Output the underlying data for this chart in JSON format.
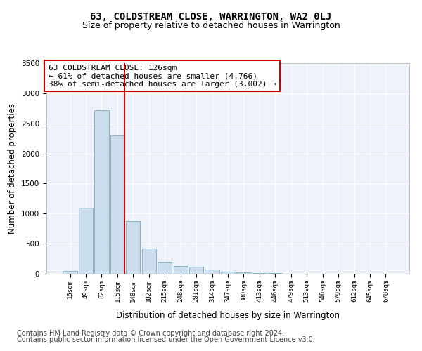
{
  "title": "63, COLDSTREAM CLOSE, WARRINGTON, WA2 0LJ",
  "subtitle": "Size of property relative to detached houses in Warrington",
  "xlabel": "Distribution of detached houses by size in Warrington",
  "ylabel": "Number of detached properties",
  "categories": [
    "16sqm",
    "49sqm",
    "82sqm",
    "115sqm",
    "148sqm",
    "182sqm",
    "215sqm",
    "248sqm",
    "281sqm",
    "314sqm",
    "347sqm",
    "380sqm",
    "413sqm",
    "446sqm",
    "479sqm",
    "513sqm",
    "546sqm",
    "579sqm",
    "612sqm",
    "645sqm",
    "678sqm"
  ],
  "values": [
    50,
    1100,
    2720,
    2300,
    870,
    415,
    200,
    130,
    115,
    70,
    40,
    22,
    12,
    7,
    4,
    3,
    2,
    1,
    1,
    0,
    0
  ],
  "bar_color": "#ccdded",
  "bar_edge_color": "#7aaabb",
  "vline_x_index": 3,
  "vline_color": "#cc0000",
  "annotation_text_line1": "63 COLDSTREAM CLOSE: 126sqm",
  "annotation_text_line2": "← 61% of detached houses are smaller (4,766)",
  "annotation_text_line3": "38% of semi-detached houses are larger (3,002) →",
  "ylim": [
    0,
    3500
  ],
  "yticks": [
    0,
    500,
    1000,
    1500,
    2000,
    2500,
    3000,
    3500
  ],
  "background_color": "#eef2fb",
  "footer1": "Contains HM Land Registry data © Crown copyright and database right 2024.",
  "footer2": "Contains public sector information licensed under the Open Government Licence v3.0.",
  "title_fontsize": 10,
  "subtitle_fontsize": 9,
  "xlabel_fontsize": 8.5,
  "ylabel_fontsize": 8.5,
  "annotation_fontsize": 8,
  "footer_fontsize": 7
}
